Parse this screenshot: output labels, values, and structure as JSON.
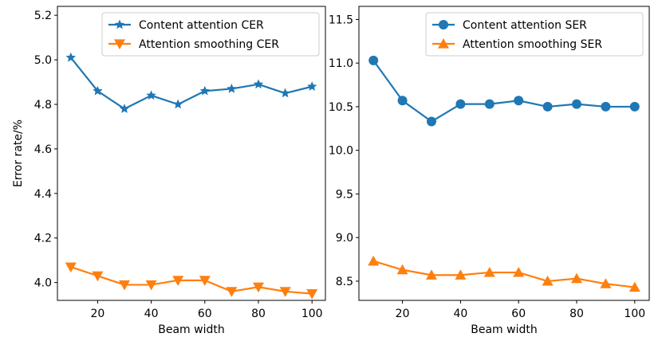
{
  "chart_data": [
    {
      "type": "line",
      "xlabel": "Beam width",
      "ylabel": "Error rate/%",
      "xlim": [
        5,
        105
      ],
      "ylim": [
        3.92,
        5.24
      ],
      "xticks": [
        20,
        40,
        60,
        80,
        100
      ],
      "yticks": [
        4.0,
        4.2,
        4.4,
        4.6,
        4.8,
        5.0,
        5.2
      ],
      "ytick_labels": [
        "4.0",
        "4.2",
        "4.4",
        "4.6",
        "4.8",
        "5.0",
        "5.2"
      ],
      "legend_position": "top-right",
      "x": [
        10,
        20,
        30,
        40,
        50,
        60,
        70,
        80,
        90,
        100
      ],
      "series": [
        {
          "name": "Content attention CER",
          "color": "#1f77b4",
          "marker": "star",
          "values": [
            5.01,
            4.86,
            4.78,
            4.84,
            4.8,
            4.86,
            4.87,
            4.89,
            4.85,
            4.88
          ]
        },
        {
          "name": "Attention smoothing CER",
          "color": "#ff7f0e",
          "marker": "triangle-down",
          "values": [
            4.07,
            4.03,
            3.99,
            3.99,
            4.01,
            4.01,
            3.96,
            3.98,
            3.96,
            3.95
          ]
        }
      ]
    },
    {
      "type": "line",
      "xlabel": "Beam width",
      "ylabel": "",
      "xlim": [
        5,
        105
      ],
      "ylim": [
        8.28,
        11.65
      ],
      "xticks": [
        20,
        40,
        60,
        80,
        100
      ],
      "yticks": [
        8.5,
        9.0,
        9.5,
        10.0,
        10.5,
        11.0,
        11.5
      ],
      "ytick_labels": [
        "8.5",
        "9.0",
        "9.5",
        "10.0",
        "10.5",
        "11.0",
        "11.5"
      ],
      "legend_position": "top-right",
      "x": [
        10,
        20,
        30,
        40,
        50,
        60,
        70,
        80,
        90,
        100
      ],
      "series": [
        {
          "name": "Content attention SER",
          "color": "#1f77b4",
          "marker": "circle",
          "values": [
            11.03,
            10.57,
            10.33,
            10.53,
            10.53,
            10.57,
            10.5,
            10.53,
            10.5,
            10.5
          ]
        },
        {
          "name": "Attention smoothing SER",
          "color": "#ff7f0e",
          "marker": "triangle-up",
          "values": [
            8.73,
            8.63,
            8.57,
            8.57,
            8.6,
            8.6,
            8.5,
            8.53,
            8.47,
            8.43
          ]
        }
      ]
    }
  ]
}
